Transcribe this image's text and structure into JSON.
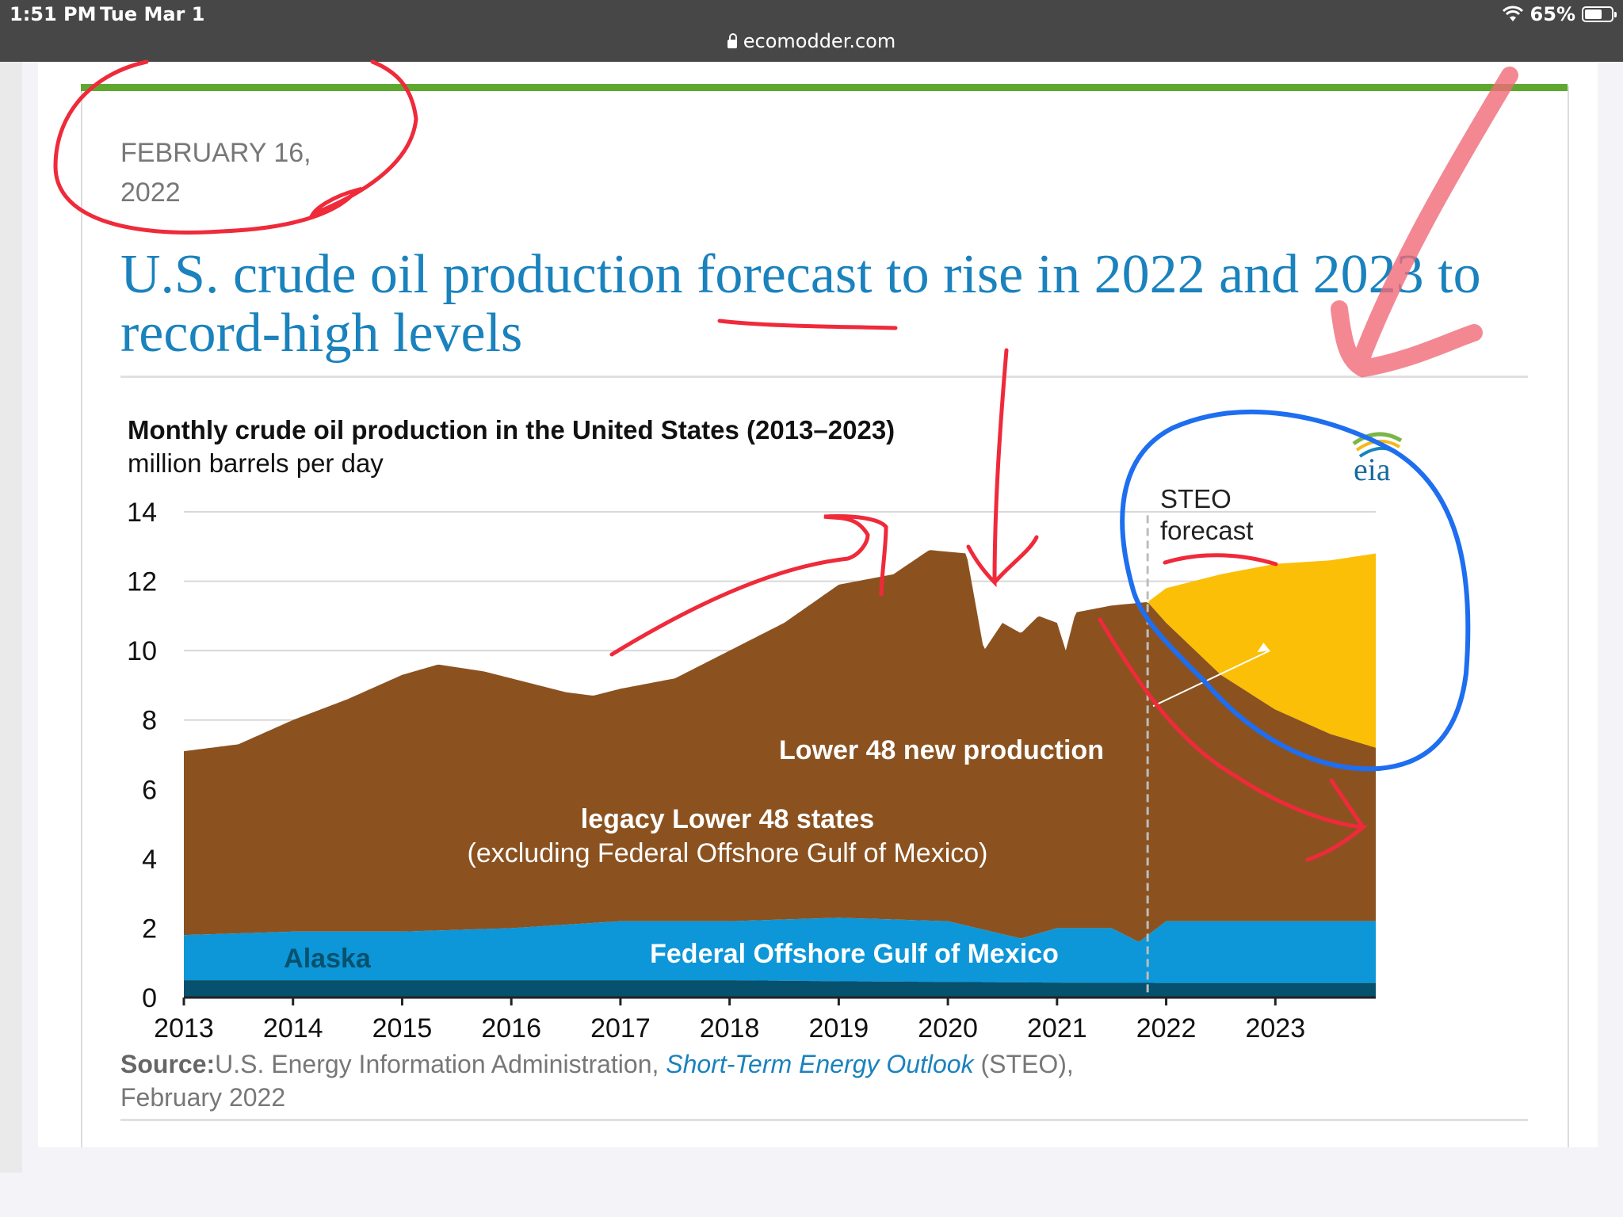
{
  "status_bar": {
    "time": "1:51 PM",
    "date": "Tue Mar 1",
    "battery": "65%",
    "battery_level": 0.65,
    "url": "ecomodder.com"
  },
  "article": {
    "date": "FEBRUARY 16, 2022",
    "headline": "U.S. crude oil production forecast to rise in 2022 and 2023 to record-high levels",
    "source_label": "Source:",
    "source_text": "U.S. Energy Information Administration,",
    "source_link": "Short-Term Energy Outlook",
    "source_tail": "(STEO),",
    "source_date": "February 2022"
  },
  "chart_data": {
    "type": "area",
    "title": "Monthly crude oil production in the United States (2013–2023)",
    "subtitle": "million barrels per day",
    "logo_text": "eia",
    "ylim": [
      0,
      14
    ],
    "y_ticks": [
      0,
      2,
      4,
      6,
      8,
      10,
      12,
      14
    ],
    "x_ticks": [
      "2013",
      "2014",
      "2015",
      "2016",
      "2017",
      "2018",
      "2019",
      "2020",
      "2021",
      "2022",
      "2023"
    ],
    "grid": true,
    "forecast_start": 2021.83,
    "forecast_label": [
      "STEO",
      "forecast"
    ],
    "series_labels": {
      "alaska": "Alaska",
      "gulf": "Federal Offshore Gulf of Mexico",
      "legacy": [
        "legacy Lower 48 states",
        "(excluding Federal  Offshore Gulf of Mexico)"
      ],
      "new": "Lower 48 new production"
    },
    "colors": {
      "alaska": "#05516e",
      "gulf": "#0d96d8",
      "legacy": "#8b5220",
      "new": "#fbbf07"
    },
    "total": [
      [
        2013.0,
        7.1
      ],
      [
        2013.5,
        7.3
      ],
      [
        2014.0,
        8.0
      ],
      [
        2014.5,
        8.6
      ],
      [
        2015.0,
        9.3
      ],
      [
        2015.33,
        9.6
      ],
      [
        2015.75,
        9.4
      ],
      [
        2016.0,
        9.2
      ],
      [
        2016.5,
        8.8
      ],
      [
        2016.75,
        8.7
      ],
      [
        2017.0,
        8.9
      ],
      [
        2017.5,
        9.2
      ],
      [
        2018.0,
        10.0
      ],
      [
        2018.5,
        10.8
      ],
      [
        2019.0,
        11.9
      ],
      [
        2019.5,
        12.2
      ],
      [
        2019.83,
        12.9
      ],
      [
        2020.17,
        12.8
      ],
      [
        2020.33,
        10.0
      ],
      [
        2020.5,
        10.8
      ],
      [
        2020.67,
        10.5
      ],
      [
        2020.83,
        11.0
      ],
      [
        2021.0,
        10.8
      ],
      [
        2021.08,
        10.0
      ],
      [
        2021.17,
        11.1
      ],
      [
        2021.5,
        11.3
      ],
      [
        2021.83,
        11.4
      ],
      [
        2022.0,
        11.8
      ],
      [
        2022.5,
        12.2
      ],
      [
        2023.0,
        12.5
      ],
      [
        2023.5,
        12.6
      ],
      [
        2023.92,
        12.8
      ]
    ],
    "legacy_top": [
      [
        2021.83,
        11.4
      ],
      [
        2022.0,
        10.8
      ],
      [
        2022.5,
        9.3
      ],
      [
        2023.0,
        8.3
      ],
      [
        2023.5,
        7.6
      ],
      [
        2023.92,
        7.2
      ]
    ],
    "gulf_top": [
      [
        2013.0,
        1.8
      ],
      [
        2014.0,
        1.9
      ],
      [
        2015.0,
        1.9
      ],
      [
        2016.0,
        2.0
      ],
      [
        2017.0,
        2.2
      ],
      [
        2018.0,
        2.2
      ],
      [
        2019.0,
        2.3
      ],
      [
        2020.0,
        2.2
      ],
      [
        2020.67,
        1.7
      ],
      [
        2021.0,
        2.0
      ],
      [
        2021.5,
        2.0
      ],
      [
        2021.75,
        1.6
      ],
      [
        2022.0,
        2.2
      ],
      [
        2023.0,
        2.2
      ],
      [
        2023.92,
        2.2
      ]
    ],
    "alaska_top": [
      [
        2013.0,
        0.5
      ],
      [
        2014.0,
        0.5
      ],
      [
        2015.0,
        0.5
      ],
      [
        2016.0,
        0.5
      ],
      [
        2017.0,
        0.5
      ],
      [
        2018.0,
        0.5
      ],
      [
        2019.0,
        0.47
      ],
      [
        2020.0,
        0.45
      ],
      [
        2021.0,
        0.43
      ],
      [
        2022.0,
        0.42
      ],
      [
        2023.0,
        0.42
      ],
      [
        2023.92,
        0.42
      ]
    ]
  }
}
